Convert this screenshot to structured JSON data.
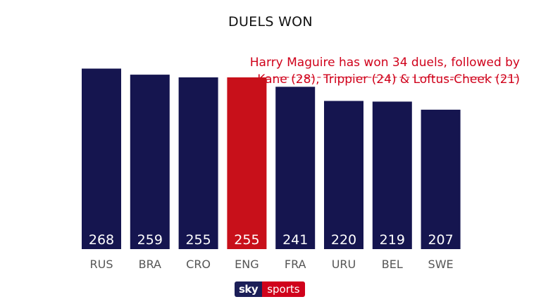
{
  "colors": {
    "bar": "#15154f",
    "highlight": "#c8101a",
    "annotation": "#d0021b",
    "axis_text": "#555555"
  },
  "logo": {
    "sky": "sky",
    "sports": "sports"
  },
  "chart_data": {
    "type": "bar",
    "title": "DUELS WON",
    "categories": [
      "RUS",
      "BRA",
      "CRO",
      "ENG",
      "FRA",
      "URU",
      "BEL",
      "SWE"
    ],
    "values": [
      268,
      259,
      255,
      255,
      241,
      220,
      219,
      207
    ],
    "highlight": "ENG",
    "annotation": "Harry Maguire has won 34 duels, followed by Kane (28), Trippier (24) & Loftus-Cheek (21)",
    "reference_line_value": 255,
    "ylim": [
      0,
      280
    ],
    "grid": false,
    "legend": "none"
  }
}
